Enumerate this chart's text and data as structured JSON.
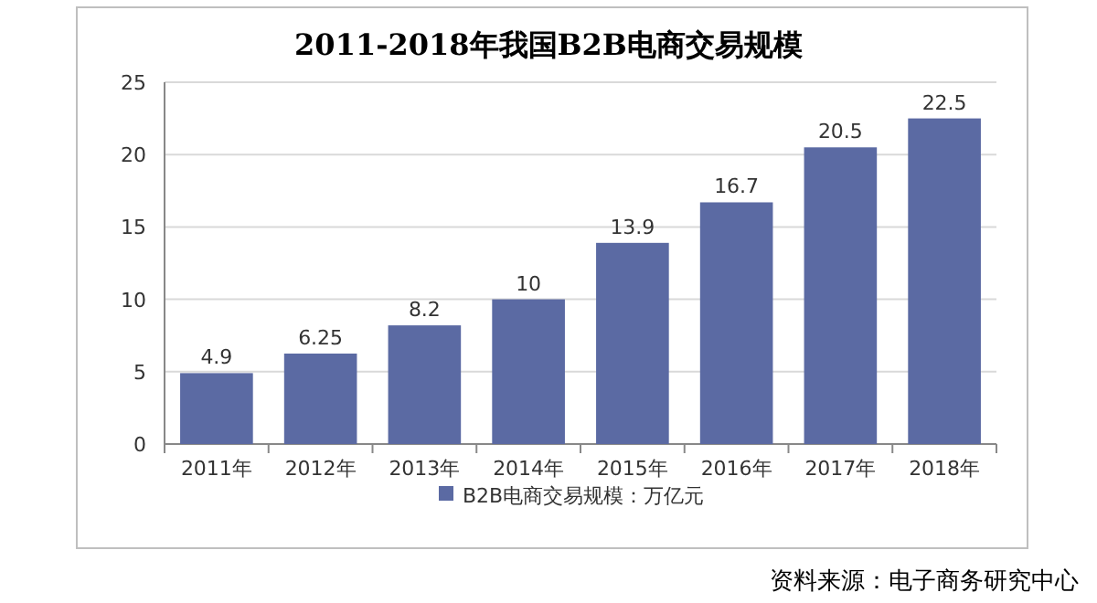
{
  "chart_data": {
    "type": "bar",
    "title": "2011-2018年我国B2B电商交易规模",
    "categories": [
      "2011年",
      "2012年",
      "2013年",
      "2014年",
      "2015年",
      "2016年",
      "2017年",
      "2018年"
    ],
    "series": [
      {
        "name": "B2B电商交易规模：万亿元",
        "color": "#5b6aa3",
        "values": [
          4.9,
          6.25,
          8.2,
          10,
          13.9,
          16.7,
          20.5,
          22.5
        ]
      }
    ],
    "ylim": [
      0,
      25
    ],
    "yticks": [
      0,
      5,
      10,
      15,
      20,
      25
    ],
    "grid": "y",
    "data_labels": true,
    "legend": "bottom",
    "annotations": [
      "资料来源：电子商务研究中心"
    ]
  }
}
